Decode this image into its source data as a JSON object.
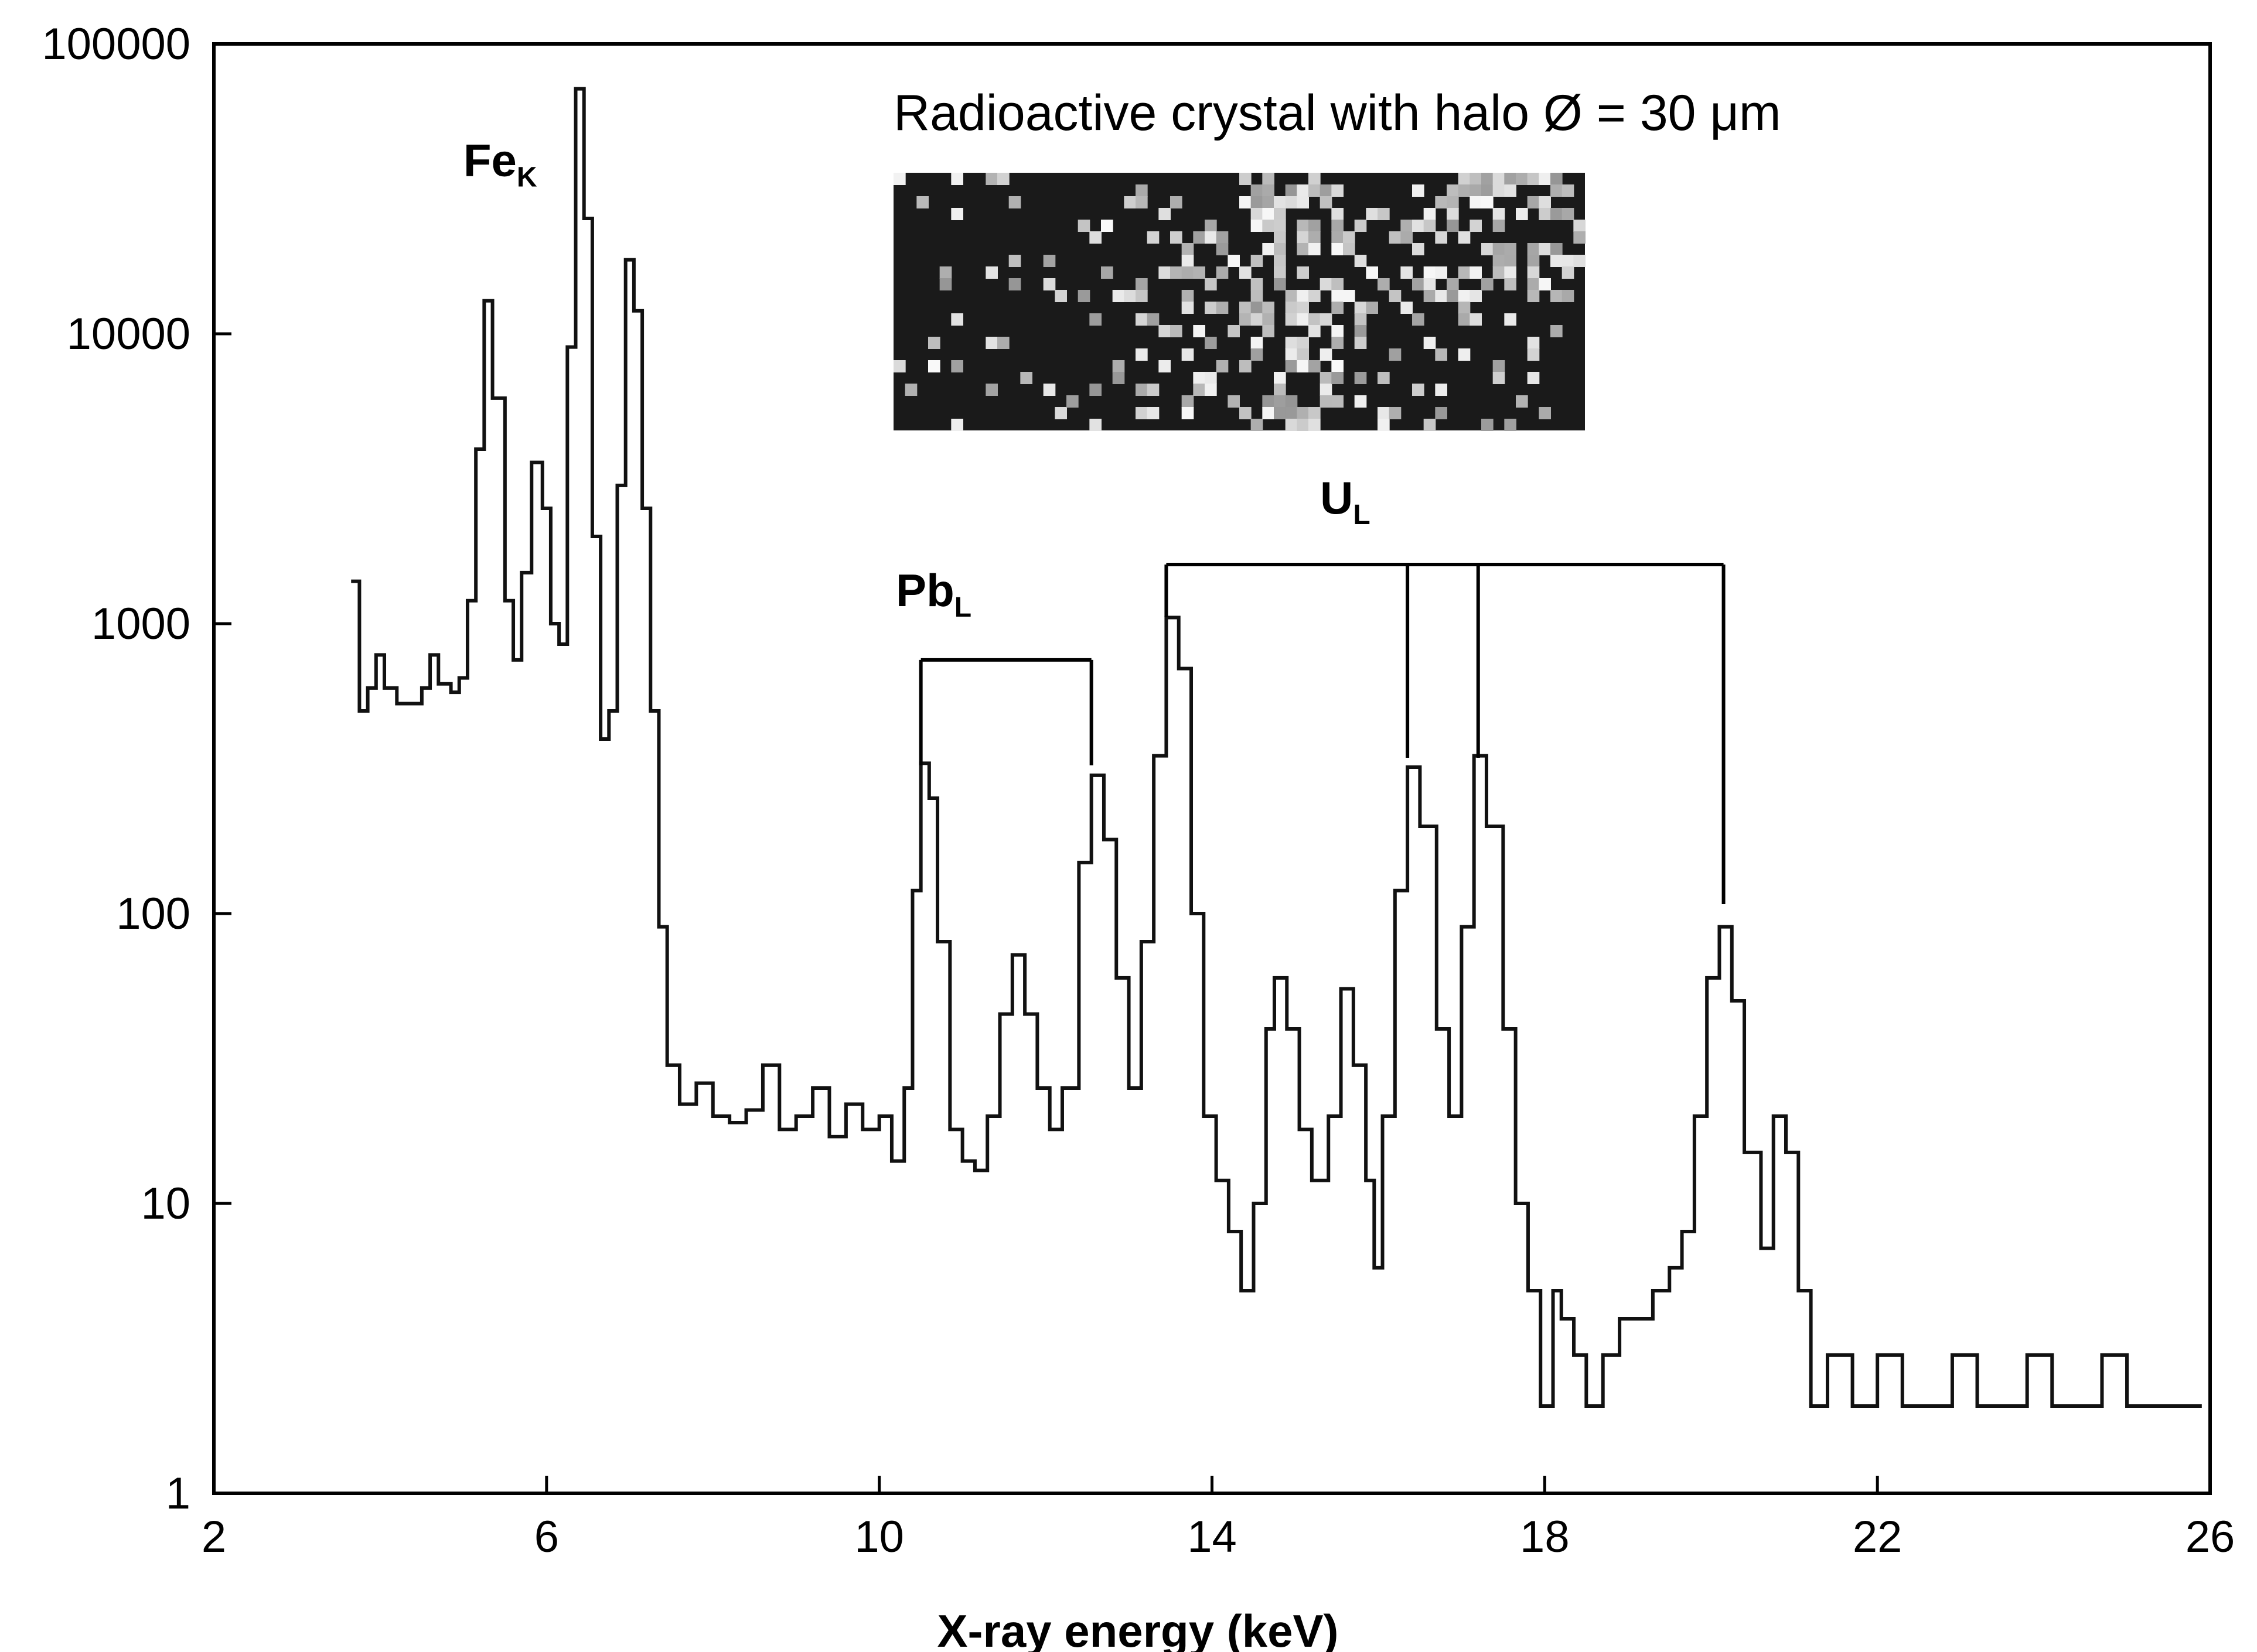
{
  "chart_data": {
    "type": "line",
    "title": "Radioactive crystal with halo Ø = 30 μm",
    "xlabel": "X-ray energy (keV)",
    "ylabel": "",
    "xlim": [
      2,
      26
    ],
    "ylim": [
      1,
      100000
    ],
    "yscale": "log",
    "x_ticks": [
      "2",
      "6",
      "10",
      "14",
      "18",
      "22",
      "26"
    ],
    "y_ticks": [
      "1",
      "10",
      "100",
      "1000",
      "10000",
      "100000"
    ],
    "grid": false,
    "legend": "none",
    "line_color": "#111111",
    "series": [
      {
        "points": [
          [
            3.65,
            1400
          ],
          [
            3.75,
            500
          ],
          [
            3.85,
            600
          ],
          [
            3.95,
            780
          ],
          [
            4.05,
            600
          ],
          [
            4.2,
            530
          ],
          [
            4.35,
            530
          ],
          [
            4.5,
            600
          ],
          [
            4.6,
            780
          ],
          [
            4.7,
            620
          ],
          [
            4.85,
            580
          ],
          [
            4.95,
            650
          ],
          [
            5.05,
            1200
          ],
          [
            5.15,
            4000
          ],
          [
            5.25,
            13000
          ],
          [
            5.35,
            6000
          ],
          [
            5.5,
            1200
          ],
          [
            5.6,
            750
          ],
          [
            5.7,
            1500
          ],
          [
            5.82,
            3600
          ],
          [
            5.95,
            2500
          ],
          [
            6.05,
            1000
          ],
          [
            6.15,
            850
          ],
          [
            6.25,
            9000
          ],
          [
            6.35,
            70000
          ],
          [
            6.45,
            25000
          ],
          [
            6.55,
            2000
          ],
          [
            6.65,
            400
          ],
          [
            6.75,
            500
          ],
          [
            6.85,
            3000
          ],
          [
            6.95,
            18000
          ],
          [
            7.05,
            12000
          ],
          [
            7.15,
            2500
          ],
          [
            7.25,
            500
          ],
          [
            7.35,
            90
          ],
          [
            7.45,
            30
          ],
          [
            7.6,
            22
          ],
          [
            7.8,
            26
          ],
          [
            8.0,
            20
          ],
          [
            8.2,
            19
          ],
          [
            8.4,
            21
          ],
          [
            8.6,
            30
          ],
          [
            8.8,
            18
          ],
          [
            9.0,
            20
          ],
          [
            9.2,
            25
          ],
          [
            9.4,
            17
          ],
          [
            9.6,
            22
          ],
          [
            9.8,
            18
          ],
          [
            10.0,
            20
          ],
          [
            10.15,
            14
          ],
          [
            10.3,
            25
          ],
          [
            10.4,
            120
          ],
          [
            10.5,
            330
          ],
          [
            10.6,
            250
          ],
          [
            10.7,
            80
          ],
          [
            10.85,
            18
          ],
          [
            11.0,
            14
          ],
          [
            11.15,
            13
          ],
          [
            11.3,
            20
          ],
          [
            11.45,
            45
          ],
          [
            11.6,
            72
          ],
          [
            11.75,
            45
          ],
          [
            11.9,
            25
          ],
          [
            12.05,
            18
          ],
          [
            12.2,
            25
          ],
          [
            12.4,
            150
          ],
          [
            12.55,
            300
          ],
          [
            12.7,
            180
          ],
          [
            12.85,
            60
          ],
          [
            13.0,
            25
          ],
          [
            13.15,
            80
          ],
          [
            13.3,
            350
          ],
          [
            13.45,
            1050
          ],
          [
            13.6,
            700
          ],
          [
            13.75,
            100
          ],
          [
            13.9,
            20
          ],
          [
            14.05,
            12
          ],
          [
            14.2,
            8
          ],
          [
            14.35,
            5
          ],
          [
            14.5,
            10
          ],
          [
            14.65,
            40
          ],
          [
            14.75,
            60
          ],
          [
            14.9,
            40
          ],
          [
            15.05,
            18
          ],
          [
            15.2,
            12
          ],
          [
            15.4,
            20
          ],
          [
            15.55,
            55
          ],
          [
            15.7,
            30
          ],
          [
            15.85,
            12
          ],
          [
            15.95,
            6
          ],
          [
            16.05,
            20
          ],
          [
            16.2,
            120
          ],
          [
            16.35,
            320
          ],
          [
            16.5,
            200
          ],
          [
            16.7,
            40
          ],
          [
            16.85,
            20
          ],
          [
            17.0,
            90
          ],
          [
            17.15,
            350
          ],
          [
            17.3,
            200
          ],
          [
            17.5,
            40
          ],
          [
            17.65,
            10
          ],
          [
            17.8,
            5
          ],
          [
            17.95,
            2
          ],
          [
            18.1,
            5
          ],
          [
            18.2,
            4
          ],
          [
            18.35,
            3
          ],
          [
            18.5,
            2
          ],
          [
            18.7,
            3
          ],
          [
            18.9,
            4
          ],
          [
            19.1,
            4
          ],
          [
            19.3,
            5
          ],
          [
            19.5,
            6
          ],
          [
            19.65,
            8
          ],
          [
            19.8,
            20
          ],
          [
            19.95,
            60
          ],
          [
            20.1,
            90
          ],
          [
            20.25,
            50
          ],
          [
            20.4,
            15
          ],
          [
            20.6,
            7
          ],
          [
            20.75,
            20
          ],
          [
            20.9,
            15
          ],
          [
            21.05,
            5
          ],
          [
            21.2,
            2
          ],
          [
            21.4,
            3
          ],
          [
            21.7,
            2
          ],
          [
            22.0,
            3
          ],
          [
            22.3,
            2
          ],
          [
            22.6,
            2
          ],
          [
            22.9,
            3
          ],
          [
            23.2,
            2
          ],
          [
            23.5,
            2
          ],
          [
            23.8,
            3
          ],
          [
            24.1,
            2
          ],
          [
            24.4,
            2
          ],
          [
            24.7,
            3
          ],
          [
            25.0,
            2
          ],
          [
            25.3,
            2
          ],
          [
            25.6,
            2
          ],
          [
            25.9,
            2
          ]
        ]
      }
    ],
    "annotations": [
      {
        "label": "Fe",
        "sub": "K",
        "x": 5.0,
        "y": 35000
      },
      {
        "label": "Pb",
        "sub": "L",
        "x": 10.2,
        "y": 1150,
        "bracket_y": 750,
        "lines": [
          10.5,
          12.55
        ]
      },
      {
        "label": "U",
        "sub": "L",
        "x": 15.3,
        "y": 2400,
        "bracket_y": 1600,
        "lines": [
          13.45,
          16.35,
          17.2,
          20.15
        ]
      }
    ],
    "inset": {
      "description_color_dark": "#1a1a1a",
      "description_color_light": "#e8e8e8"
    }
  }
}
